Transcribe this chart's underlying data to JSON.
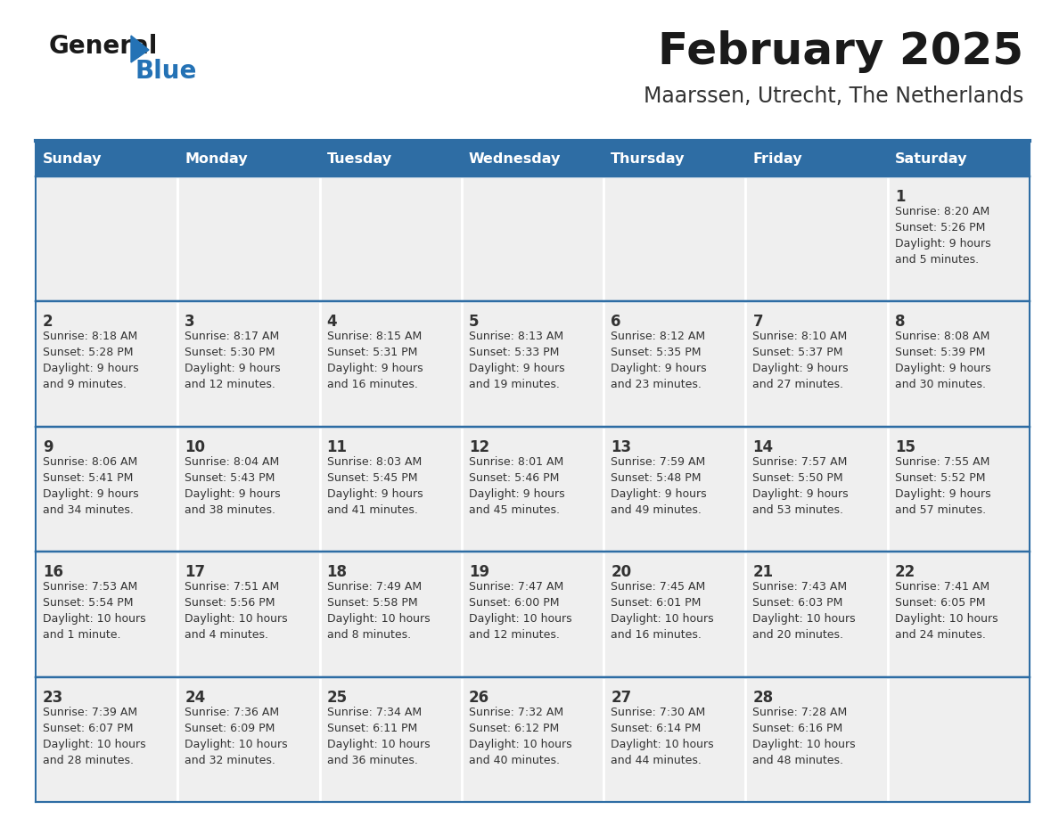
{
  "title": "February 2025",
  "subtitle": "Maarssen, Utrecht, The Netherlands",
  "days_of_week": [
    "Sunday",
    "Monday",
    "Tuesday",
    "Wednesday",
    "Thursday",
    "Friday",
    "Saturday"
  ],
  "header_bg": "#2E6DA4",
  "header_text": "#FFFFFF",
  "cell_bg": "#EFEFEF",
  "border_color": "#2E6DA4",
  "sep_color": "#FFFFFF",
  "text_color": "#333333",
  "day_num_color": "#333333",
  "logo_general_color": "#1a1a1a",
  "logo_blue_color": "#2472B5",
  "weeks": [
    [
      {
        "day": null,
        "text": ""
      },
      {
        "day": null,
        "text": ""
      },
      {
        "day": null,
        "text": ""
      },
      {
        "day": null,
        "text": ""
      },
      {
        "day": null,
        "text": ""
      },
      {
        "day": null,
        "text": ""
      },
      {
        "day": 1,
        "sunrise": "Sunrise: 8:20 AM",
        "sunset": "Sunset: 5:26 PM",
        "daylight": "Daylight: 9 hours",
        "daylight2": "and 5 minutes."
      }
    ],
    [
      {
        "day": 2,
        "sunrise": "Sunrise: 8:18 AM",
        "sunset": "Sunset: 5:28 PM",
        "daylight": "Daylight: 9 hours",
        "daylight2": "and 9 minutes."
      },
      {
        "day": 3,
        "sunrise": "Sunrise: 8:17 AM",
        "sunset": "Sunset: 5:30 PM",
        "daylight": "Daylight: 9 hours",
        "daylight2": "and 12 minutes."
      },
      {
        "day": 4,
        "sunrise": "Sunrise: 8:15 AM",
        "sunset": "Sunset: 5:31 PM",
        "daylight": "Daylight: 9 hours",
        "daylight2": "and 16 minutes."
      },
      {
        "day": 5,
        "sunrise": "Sunrise: 8:13 AM",
        "sunset": "Sunset: 5:33 PM",
        "daylight": "Daylight: 9 hours",
        "daylight2": "and 19 minutes."
      },
      {
        "day": 6,
        "sunrise": "Sunrise: 8:12 AM",
        "sunset": "Sunset: 5:35 PM",
        "daylight": "Daylight: 9 hours",
        "daylight2": "and 23 minutes."
      },
      {
        "day": 7,
        "sunrise": "Sunrise: 8:10 AM",
        "sunset": "Sunset: 5:37 PM",
        "daylight": "Daylight: 9 hours",
        "daylight2": "and 27 minutes."
      },
      {
        "day": 8,
        "sunrise": "Sunrise: 8:08 AM",
        "sunset": "Sunset: 5:39 PM",
        "daylight": "Daylight: 9 hours",
        "daylight2": "and 30 minutes."
      }
    ],
    [
      {
        "day": 9,
        "sunrise": "Sunrise: 8:06 AM",
        "sunset": "Sunset: 5:41 PM",
        "daylight": "Daylight: 9 hours",
        "daylight2": "and 34 minutes."
      },
      {
        "day": 10,
        "sunrise": "Sunrise: 8:04 AM",
        "sunset": "Sunset: 5:43 PM",
        "daylight": "Daylight: 9 hours",
        "daylight2": "and 38 minutes."
      },
      {
        "day": 11,
        "sunrise": "Sunrise: 8:03 AM",
        "sunset": "Sunset: 5:45 PM",
        "daylight": "Daylight: 9 hours",
        "daylight2": "and 41 minutes."
      },
      {
        "day": 12,
        "sunrise": "Sunrise: 8:01 AM",
        "sunset": "Sunset: 5:46 PM",
        "daylight": "Daylight: 9 hours",
        "daylight2": "and 45 minutes."
      },
      {
        "day": 13,
        "sunrise": "Sunrise: 7:59 AM",
        "sunset": "Sunset: 5:48 PM",
        "daylight": "Daylight: 9 hours",
        "daylight2": "and 49 minutes."
      },
      {
        "day": 14,
        "sunrise": "Sunrise: 7:57 AM",
        "sunset": "Sunset: 5:50 PM",
        "daylight": "Daylight: 9 hours",
        "daylight2": "and 53 minutes."
      },
      {
        "day": 15,
        "sunrise": "Sunrise: 7:55 AM",
        "sunset": "Sunset: 5:52 PM",
        "daylight": "Daylight: 9 hours",
        "daylight2": "and 57 minutes."
      }
    ],
    [
      {
        "day": 16,
        "sunrise": "Sunrise: 7:53 AM",
        "sunset": "Sunset: 5:54 PM",
        "daylight": "Daylight: 10 hours",
        "daylight2": "and 1 minute."
      },
      {
        "day": 17,
        "sunrise": "Sunrise: 7:51 AM",
        "sunset": "Sunset: 5:56 PM",
        "daylight": "Daylight: 10 hours",
        "daylight2": "and 4 minutes."
      },
      {
        "day": 18,
        "sunrise": "Sunrise: 7:49 AM",
        "sunset": "Sunset: 5:58 PM",
        "daylight": "Daylight: 10 hours",
        "daylight2": "and 8 minutes."
      },
      {
        "day": 19,
        "sunrise": "Sunrise: 7:47 AM",
        "sunset": "Sunset: 6:00 PM",
        "daylight": "Daylight: 10 hours",
        "daylight2": "and 12 minutes."
      },
      {
        "day": 20,
        "sunrise": "Sunrise: 7:45 AM",
        "sunset": "Sunset: 6:01 PM",
        "daylight": "Daylight: 10 hours",
        "daylight2": "and 16 minutes."
      },
      {
        "day": 21,
        "sunrise": "Sunrise: 7:43 AM",
        "sunset": "Sunset: 6:03 PM",
        "daylight": "Daylight: 10 hours",
        "daylight2": "and 20 minutes."
      },
      {
        "day": 22,
        "sunrise": "Sunrise: 7:41 AM",
        "sunset": "Sunset: 6:05 PM",
        "daylight": "Daylight: 10 hours",
        "daylight2": "and 24 minutes."
      }
    ],
    [
      {
        "day": 23,
        "sunrise": "Sunrise: 7:39 AM",
        "sunset": "Sunset: 6:07 PM",
        "daylight": "Daylight: 10 hours",
        "daylight2": "and 28 minutes."
      },
      {
        "day": 24,
        "sunrise": "Sunrise: 7:36 AM",
        "sunset": "Sunset: 6:09 PM",
        "daylight": "Daylight: 10 hours",
        "daylight2": "and 32 minutes."
      },
      {
        "day": 25,
        "sunrise": "Sunrise: 7:34 AM",
        "sunset": "Sunset: 6:11 PM",
        "daylight": "Daylight: 10 hours",
        "daylight2": "and 36 minutes."
      },
      {
        "day": 26,
        "sunrise": "Sunrise: 7:32 AM",
        "sunset": "Sunset: 6:12 PM",
        "daylight": "Daylight: 10 hours",
        "daylight2": "and 40 minutes."
      },
      {
        "day": 27,
        "sunrise": "Sunrise: 7:30 AM",
        "sunset": "Sunset: 6:14 PM",
        "daylight": "Daylight: 10 hours",
        "daylight2": "and 44 minutes."
      },
      {
        "day": 28,
        "sunrise": "Sunrise: 7:28 AM",
        "sunset": "Sunset: 6:16 PM",
        "daylight": "Daylight: 10 hours",
        "daylight2": "and 48 minutes."
      },
      {
        "day": null,
        "text": ""
      }
    ]
  ]
}
